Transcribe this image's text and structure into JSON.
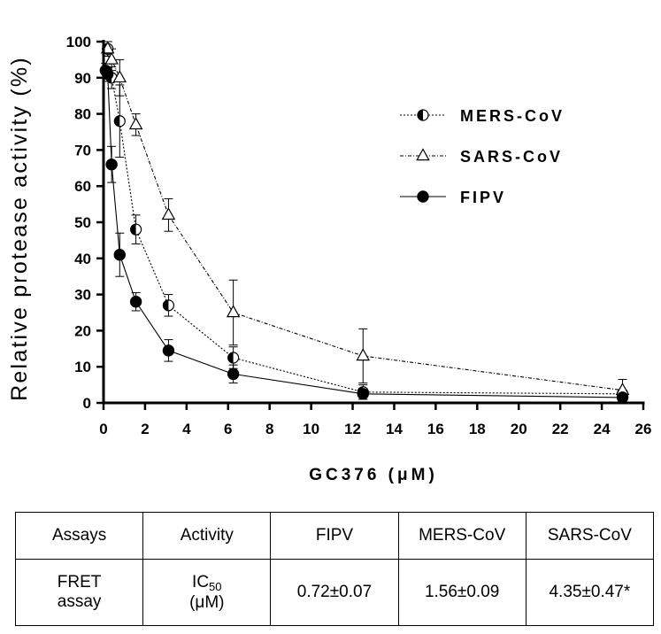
{
  "chart_data": {
    "type": "scatter",
    "title": "",
    "xlabel": "GC376 (μM)",
    "ylabel": "Relative protease activity (%)",
    "xlim": [
      0,
      26
    ],
    "ylim": [
      0,
      100
    ],
    "xticks": [
      0,
      2,
      4,
      6,
      8,
      10,
      12,
      14,
      16,
      18,
      20,
      22,
      24,
      26
    ],
    "yticks": [
      0,
      10,
      20,
      30,
      40,
      50,
      60,
      70,
      80,
      90,
      100
    ],
    "legend_position": "top-right",
    "series": [
      {
        "name": "MERS-CoV",
        "marker": "half-filled-circle",
        "line_style": "dotted",
        "x": [
          0.2,
          0.39,
          0.78,
          1.56,
          3.13,
          6.25,
          12.5,
          25
        ],
        "y": [
          98,
          90,
          78,
          48,
          27,
          12.5,
          3,
          2.5
        ],
        "error": [
          2,
          3,
          10,
          4,
          3,
          3,
          2,
          1
        ]
      },
      {
        "name": "SARS-CoV",
        "marker": "open-triangle",
        "line_style": "dash-dot",
        "x": [
          0.2,
          0.39,
          0.78,
          1.56,
          3.13,
          6.25,
          12.5,
          25
        ],
        "y": [
          98,
          95,
          90,
          77,
          52,
          25,
          13,
          3.5
        ],
        "error": [
          2,
          3,
          5,
          3,
          4.5,
          9,
          7.5,
          3
        ]
      },
      {
        "name": "FIPV",
        "marker": "filled-circle",
        "line_style": "solid",
        "x": [
          0.1,
          0.2,
          0.39,
          0.78,
          1.56,
          3.13,
          6.25,
          12.5,
          25
        ],
        "y": [
          92,
          91,
          66,
          41,
          28,
          14.5,
          8,
          2.5,
          1.5
        ],
        "error": [
          2,
          2,
          5,
          6,
          2.5,
          3,
          2.5,
          1.5,
          0.5
        ]
      }
    ]
  },
  "colors": {
    "ink": "#000000",
    "background": "#ffffff"
  },
  "table": {
    "headers": [
      "Assays",
      "Activity",
      "FIPV",
      "MERS-CoV",
      "SARS-CoV"
    ],
    "row": {
      "assay_line1": "FRET",
      "assay_line2": "assay",
      "activity_ic": "IC",
      "activity_sub": "50",
      "activity_unit": "(μM)",
      "fipv": "0.72±0.07",
      "mers": "1.56±0.09",
      "sars": "4.35±0.47*"
    }
  }
}
